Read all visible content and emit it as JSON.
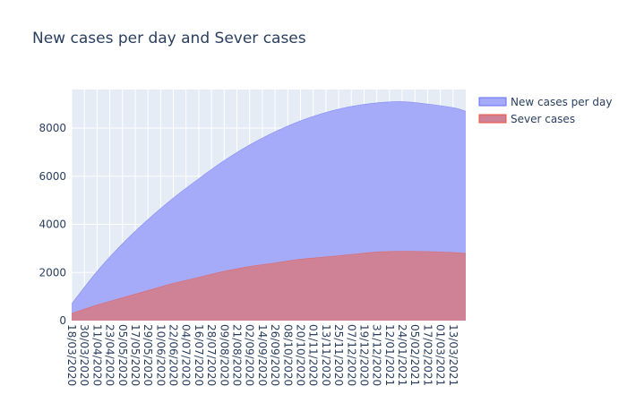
{
  "chart_data": {
    "type": "area",
    "title": "New cases per day and Sever cases",
    "xlabel": "",
    "ylabel": "",
    "ylim": [
      0,
      9600
    ],
    "yticks": [
      0,
      2000,
      4000,
      6000,
      8000
    ],
    "y_tick_labels": [
      "0",
      "2000",
      "4000",
      "6000",
      "8000"
    ],
    "x_start": "2020-03-18",
    "x_end": "2021-03-25",
    "x_tick_labels": [
      "18/03/2020",
      "30/03/2020",
      "11/04/2020",
      "23/04/2020",
      "05/05/2020",
      "17/05/2020",
      "29/05/2020",
      "10/06/2020",
      "22/06/2020",
      "04/07/2020",
      "16/07/2020",
      "28/07/2020",
      "09/08/2020",
      "21/08/2020",
      "02/09/2020",
      "14/09/2020",
      "26/09/2020",
      "08/10/2020",
      "20/10/2020",
      "01/11/2020",
      "13/11/2020",
      "25/11/2020",
      "07/12/2020",
      "19/12/2020",
      "31/12/2020",
      "12/01/2021",
      "24/01/2021",
      "05/02/2021",
      "17/02/2021",
      "01/03/2021",
      "13/03/2021"
    ],
    "legend_position": "top-right",
    "grid": true,
    "series": [
      {
        "name": "New cases per day",
        "color": "#636efa",
        "fill": "#a5aaf9",
        "x": [
          "2020-03-18",
          "2020-04-11",
          "2020-05-05",
          "2020-05-29",
          "2020-06-22",
          "2020-07-16",
          "2020-08-09",
          "2020-09-02",
          "2020-09-26",
          "2020-10-20",
          "2020-11-13",
          "2020-12-07",
          "2020-12-31",
          "2021-01-24",
          "2021-02-17",
          "2021-03-13",
          "2021-03-25"
        ],
        "y": [
          700,
          2050,
          3200,
          4200,
          5100,
          5900,
          6650,
          7300,
          7850,
          8300,
          8650,
          8900,
          9050,
          9100,
          9000,
          8850,
          8700
        ]
      },
      {
        "name": "Sever cases",
        "color": "#ef553b",
        "fill": "#cf8196",
        "x": [
          "2020-03-18",
          "2020-04-11",
          "2020-05-05",
          "2020-05-29",
          "2020-06-22",
          "2020-07-16",
          "2020-08-09",
          "2020-09-02",
          "2020-09-26",
          "2020-10-20",
          "2020-11-13",
          "2020-12-07",
          "2020-12-31",
          "2021-01-24",
          "2021-02-17",
          "2021-03-13",
          "2021-03-25"
        ],
        "y": [
          300,
          650,
          950,
          1250,
          1550,
          1800,
          2050,
          2250,
          2400,
          2550,
          2650,
          2750,
          2850,
          2880,
          2870,
          2830,
          2790
        ]
      }
    ]
  }
}
